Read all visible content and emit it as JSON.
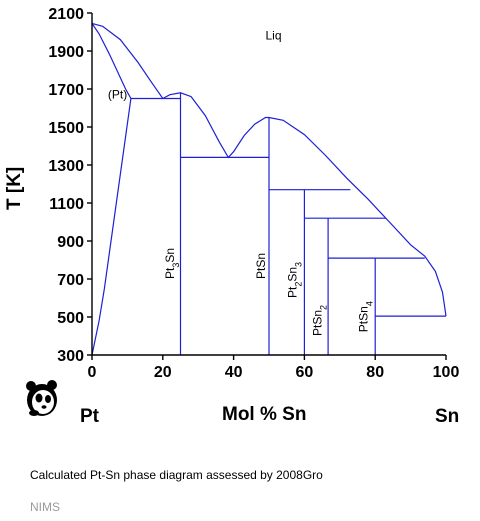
{
  "chart_data": {
    "type": "phase-diagram",
    "title": "",
    "xlabel": "Mol % Sn",
    "ylabel": "T [K]",
    "xlim": [
      0,
      100
    ],
    "ylim": [
      300,
      2100
    ],
    "xticks": [
      0,
      20,
      40,
      60,
      80,
      100
    ],
    "yticks": [
      300,
      500,
      700,
      900,
      1100,
      1300,
      1500,
      1700,
      1900,
      2100
    ],
    "grid": false,
    "line_color": "#1f1fd6",
    "end_members": {
      "left": "Pt",
      "right": "Sn"
    },
    "phase_labels": [
      {
        "text": "Liq",
        "x": 49,
        "y": 1960,
        "vertical": false
      },
      {
        "text": "(Pt)",
        "x": 4.5,
        "y": 1650,
        "vertical": false
      },
      {
        "text": "Pt3Sn",
        "x": 23.2,
        "y": 700,
        "vertical": true
      },
      {
        "text": "PtSn",
        "x": 48.8,
        "y": 700,
        "vertical": true
      },
      {
        "text": "Pt2Sn3",
        "x": 57.8,
        "y": 600,
        "vertical": true
      },
      {
        "text": "PtSn2",
        "x": 64.8,
        "y": 400,
        "vertical": true
      },
      {
        "text": "PtSn4",
        "x": 77.8,
        "y": 420,
        "vertical": true
      }
    ],
    "curves": [
      {
        "name": "liquidus",
        "points": [
          [
            0,
            2045
          ],
          [
            3,
            2030
          ],
          [
            8,
            1960
          ],
          [
            13,
            1840
          ],
          [
            17,
            1730
          ],
          [
            20,
            1650
          ],
          [
            22,
            1670
          ],
          [
            25,
            1680
          ],
          [
            28,
            1660
          ],
          [
            32,
            1560
          ],
          [
            36,
            1420
          ],
          [
            38.5,
            1340
          ],
          [
            40,
            1370
          ],
          [
            43,
            1455
          ],
          [
            46,
            1515
          ],
          [
            49,
            1550
          ],
          [
            50,
            1550
          ],
          [
            54,
            1535
          ],
          [
            60,
            1460
          ],
          [
            66,
            1350
          ],
          [
            72,
            1230
          ],
          [
            78,
            1120
          ],
          [
            84,
            1000
          ],
          [
            90,
            880
          ],
          [
            94,
            820
          ],
          [
            97,
            740
          ],
          [
            99,
            630
          ],
          [
            100,
            505
          ]
        ]
      },
      {
        "name": "(Pt) solidus",
        "points": [
          [
            0,
            2045
          ],
          [
            2,
            1990
          ],
          [
            5,
            1880
          ],
          [
            7.5,
            1780
          ],
          [
            9.5,
            1700
          ],
          [
            11,
            1650
          ]
        ]
      },
      {
        "name": "(Pt) solvus",
        "points": [
          [
            11,
            1650
          ],
          [
            9.5,
            1450
          ],
          [
            8,
            1250
          ],
          [
            6.5,
            1050
          ],
          [
            5,
            850
          ],
          [
            3.5,
            650
          ],
          [
            2,
            480
          ],
          [
            0,
            300
          ]
        ]
      },
      {
        "name": "Pt3Sn",
        "points": [
          [
            25,
            300
          ],
          [
            25,
            1680
          ]
        ]
      },
      {
        "name": "PtSn",
        "points": [
          [
            50,
            300
          ],
          [
            50,
            1550
          ]
        ]
      },
      {
        "name": "Pt2Sn3",
        "points": [
          [
            60,
            300
          ],
          [
            60,
            1170
          ]
        ]
      },
      {
        "name": "PtSn2",
        "points": [
          [
            66.7,
            300
          ],
          [
            66.7,
            1020
          ]
        ]
      },
      {
        "name": "PtSn4",
        "points": [
          [
            80,
            300
          ],
          [
            80,
            810
          ]
        ]
      },
      {
        "name": "peritectic 1650",
        "points": [
          [
            11,
            1650
          ],
          [
            25,
            1650
          ]
        ]
      },
      {
        "name": "eutectic 1340",
        "points": [
          [
            25,
            1340
          ],
          [
            50,
            1340
          ]
        ]
      },
      {
        "name": "peritectic 1170",
        "points": [
          [
            50,
            1170
          ],
          [
            73,
            1170
          ]
        ]
      },
      {
        "name": "peritectic 1020",
        "points": [
          [
            60,
            1020
          ],
          [
            83,
            1020
          ]
        ]
      },
      {
        "name": "peritectic 810",
        "points": [
          [
            66.7,
            810
          ],
          [
            94,
            810
          ]
        ]
      },
      {
        "name": "eutectic 505",
        "points": [
          [
            80,
            505
          ],
          [
            100,
            505
          ]
        ]
      }
    ]
  },
  "caption": "Calculated Pt-Sn phase diagram assessed by 2008Gro",
  "credit": "NIMS",
  "logo_icon": "panda-logo-icon"
}
